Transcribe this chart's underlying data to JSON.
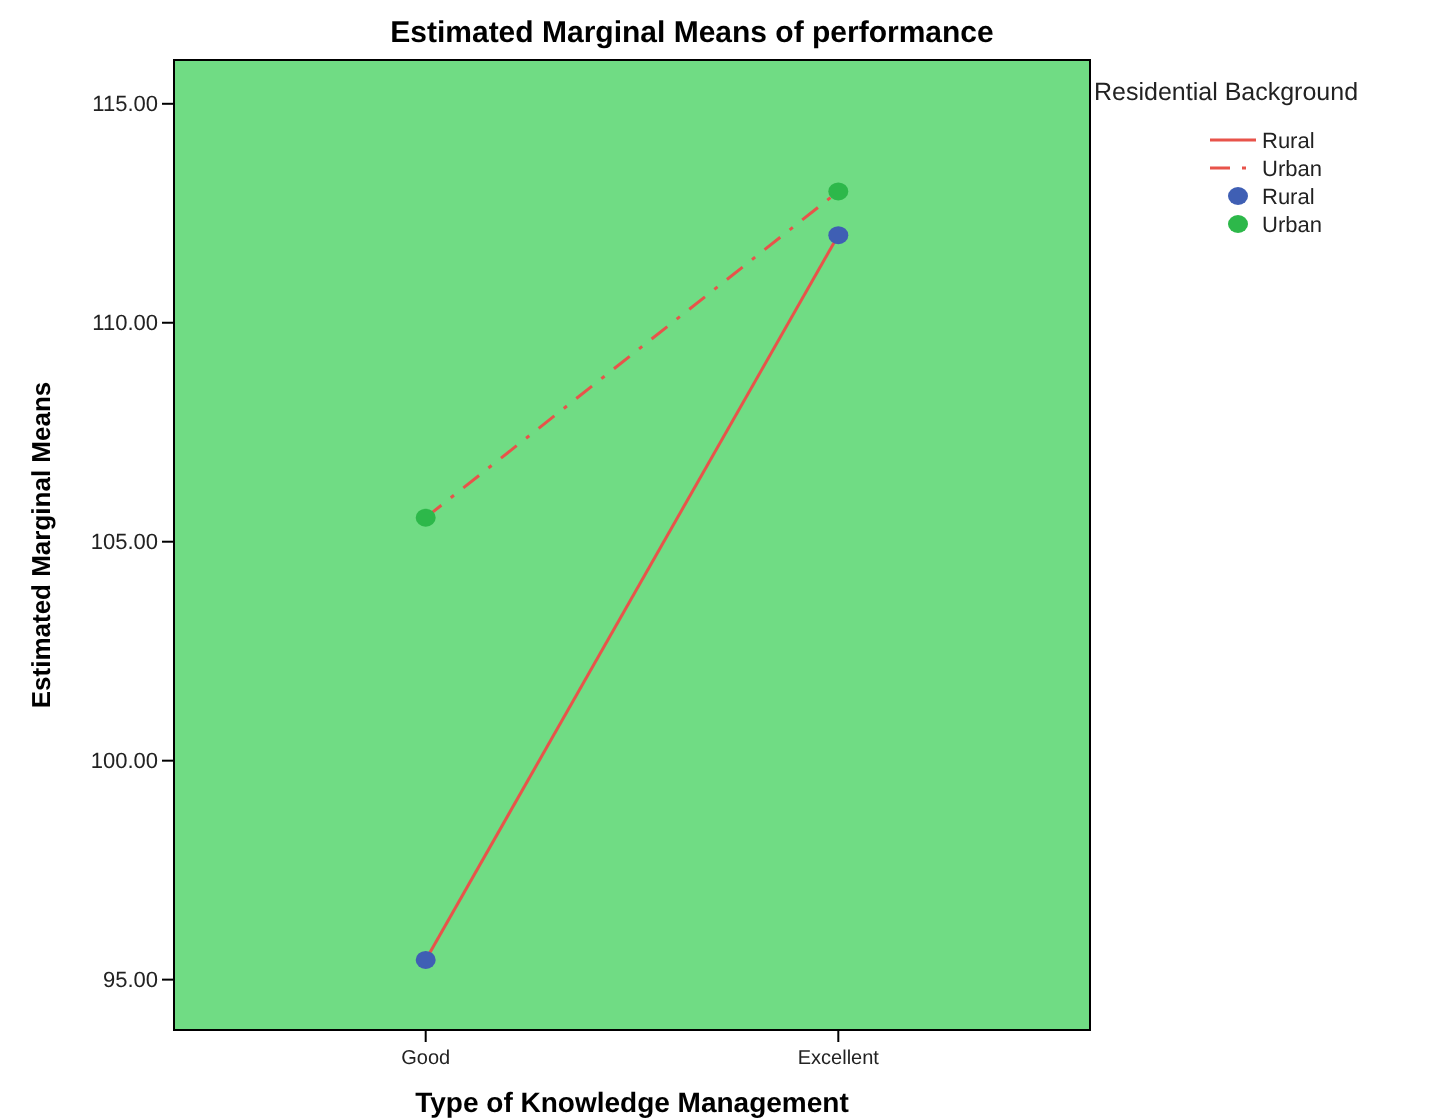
{
  "chart_data": {
    "type": "line",
    "title": "Estimated Marginal Means of performance",
    "xlabel": "Type of Knowledge Management",
    "ylabel": "Estimated Marginal Means",
    "legend_title": "Residential Background",
    "categories": [
      "Good",
      "Excellent"
    ],
    "series": [
      {
        "name": "Rural",
        "color": "#e8534a",
        "values": [
          95.45,
          112.0
        ],
        "line_style": "solid"
      },
      {
        "name": "Urban",
        "color": "#e8534a",
        "values": [
          105.55,
          113.0
        ],
        "line_style": "dashed"
      },
      {
        "name": "Rural",
        "type": "scatter",
        "color": "#3f5fb4",
        "values": [
          95.45,
          112.0
        ],
        "marker": "circle"
      },
      {
        "name": "Urban",
        "type": "scatter",
        "color": "#2db84a",
        "values": [
          105.55,
          113.0
        ],
        "marker": "circle"
      }
    ],
    "ylim": [
      93.85,
      116.0
    ],
    "yticks": [
      {
        "value": 95,
        "label": "95.00"
      },
      {
        "value": 100,
        "label": "100.00"
      },
      {
        "value": 105,
        "label": "105.00"
      },
      {
        "value": 110,
        "label": "110.00"
      },
      {
        "value": 115,
        "label": "115.00"
      }
    ],
    "grid": false,
    "legend": "right"
  }
}
